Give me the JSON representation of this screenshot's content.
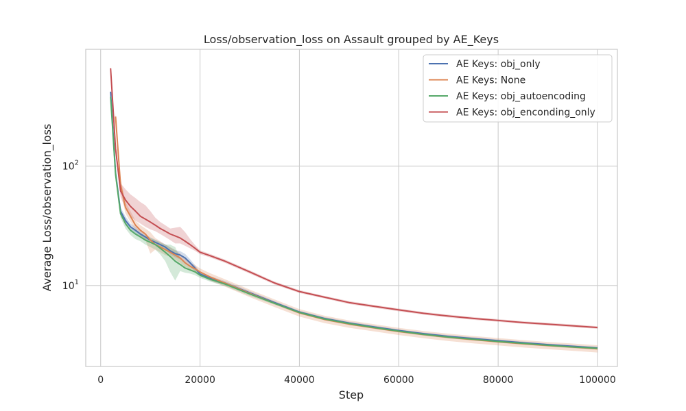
{
  "chart_data": {
    "type": "line",
    "title": "Loss/observation_loss on Assault grouped by AE_Keys",
    "xlabel": "Step",
    "ylabel": "Average Loss/observation_loss",
    "xlim": [
      -3000,
      104000
    ],
    "ylim": [
      2.1,
      950
    ],
    "yscale": "log",
    "grid": true,
    "legend_position": "top-right",
    "x_ticks": [
      0,
      20000,
      40000,
      60000,
      80000,
      100000
    ],
    "x_tick_labels": [
      "0",
      "20000",
      "40000",
      "60000",
      "80000",
      "100000"
    ],
    "y_ticks": [
      {
        "value": 10,
        "base": "10",
        "exp": "1"
      },
      {
        "value": 100,
        "base": "10",
        "exp": "2"
      }
    ],
    "series": [
      {
        "name": "AE Keys: obj_only",
        "color": "#4c72b0",
        "x": [
          2000,
          3000,
          4000,
          5000,
          6000,
          7000,
          8000,
          9000,
          10000,
          11000,
          12000,
          13000,
          14000,
          15000,
          16000,
          17000,
          18000,
          19000,
          20000,
          22000,
          25000,
          30000,
          35000,
          40000,
          45000,
          50000,
          55000,
          60000,
          65000,
          70000,
          75000,
          80000,
          85000,
          90000,
          95000,
          100000
        ],
        "y": [
          420,
          88,
          42,
          35,
          31,
          29,
          27,
          25.5,
          24,
          23,
          22,
          21,
          19.5,
          18.5,
          18,
          17,
          15.5,
          14,
          12.5,
          11.5,
          10.5,
          8.7,
          7.2,
          6.0,
          5.3,
          4.85,
          4.5,
          4.2,
          3.95,
          3.75,
          3.6,
          3.45,
          3.32,
          3.2,
          3.1,
          3.0
        ],
        "lo": [
          400,
          80,
          39,
          32,
          29,
          27,
          25.5,
          24,
          22.8,
          21.8,
          20.8,
          19.8,
          18.2,
          17.2,
          16.6,
          15.6,
          14.4,
          13.2,
          12,
          11,
          10.1,
          8.4,
          7.0,
          5.85,
          5.15,
          4.72,
          4.38,
          4.1,
          3.86,
          3.66,
          3.51,
          3.37,
          3.24,
          3.13,
          3.03,
          2.93
        ],
        "hi": [
          440,
          96,
          45,
          38,
          33,
          31,
          28.5,
          27,
          25.3,
          24.2,
          23.2,
          22.2,
          20.8,
          19.8,
          19.4,
          18.4,
          16.6,
          14.8,
          13,
          12,
          10.9,
          9.0,
          7.4,
          6.15,
          5.45,
          4.98,
          4.62,
          4.3,
          4.04,
          3.84,
          3.69,
          3.53,
          3.4,
          3.27,
          3.17,
          3.07
        ]
      },
      {
        "name": "AE Keys: None",
        "color": "#dd8452",
        "x": [
          3000,
          4000,
          5000,
          6000,
          7000,
          8000,
          9000,
          10000,
          11000,
          12000,
          13000,
          14000,
          15000,
          16000,
          17000,
          18000,
          19000,
          20000,
          22000,
          25000,
          30000,
          35000,
          40000,
          45000,
          50000,
          55000,
          60000,
          65000,
          70000,
          75000,
          80000,
          85000,
          90000,
          95000,
          100000
        ],
        "y": [
          260,
          70,
          45,
          38,
          32,
          29,
          27,
          24,
          22,
          21,
          20,
          19,
          18,
          17,
          15.5,
          14.5,
          13.8,
          13,
          11.8,
          10.5,
          8.6,
          7.1,
          5.9,
          5.2,
          4.75,
          4.42,
          4.12,
          3.88,
          3.68,
          3.52,
          3.38,
          3.25,
          3.14,
          3.05,
          2.95
        ],
        "lo": [
          230,
          62,
          40,
          34,
          29,
          26,
          24,
          18.5,
          20,
          19,
          18,
          17.5,
          16.5,
          15.5,
          14.3,
          13.5,
          12.9,
          12.2,
          11,
          9.8,
          8.0,
          6.6,
          5.5,
          4.85,
          4.43,
          4.13,
          3.85,
          3.62,
          3.43,
          3.28,
          3.15,
          3.03,
          2.93,
          2.84,
          2.75
        ],
        "hi": [
          280,
          80,
          50,
          42,
          35,
          32,
          30,
          28,
          25,
          23.5,
          22,
          21,
          19.8,
          18.6,
          16.8,
          15.6,
          14.8,
          13.9,
          12.7,
          11.3,
          9.25,
          7.65,
          6.35,
          5.6,
          5.1,
          4.75,
          4.42,
          4.16,
          3.95,
          3.78,
          3.63,
          3.49,
          3.37,
          3.27,
          3.16
        ]
      },
      {
        "name": "AE Keys: obj_autoencoding",
        "color": "#55a868",
        "x": [
          2000,
          3000,
          4000,
          5000,
          6000,
          7000,
          8000,
          9000,
          10000,
          11000,
          12000,
          13000,
          14000,
          15000,
          16000,
          17000,
          18000,
          19000,
          20000,
          22000,
          25000,
          30000,
          35000,
          40000,
          45000,
          50000,
          55000,
          60000,
          65000,
          70000,
          75000,
          80000,
          85000,
          90000,
          95000,
          100000
        ],
        "y": [
          380,
          85,
          40,
          33,
          29,
          27,
          25.5,
          24,
          23,
          22,
          20.5,
          19,
          17.5,
          16,
          15,
          14,
          13.5,
          13,
          12.2,
          11.3,
          10.3,
          8.5,
          7.1,
          5.95,
          5.25,
          4.8,
          4.45,
          4.15,
          3.9,
          3.7,
          3.55,
          3.4,
          3.28,
          3.16,
          3.06,
          2.98
        ],
        "lo": [
          360,
          78,
          37,
          30,
          26.5,
          24.5,
          23.5,
          22,
          21,
          20,
          18.2,
          16,
          13,
          11,
          13.2,
          12.8,
          12.6,
          12.2,
          11.6,
          10.8,
          9.9,
          8.2,
          6.9,
          5.8,
          5.12,
          4.68,
          4.34,
          4.05,
          3.81,
          3.61,
          3.47,
          3.32,
          3.2,
          3.09,
          2.99,
          2.91
        ],
        "hi": [
          400,
          92,
          43,
          36,
          31.5,
          29.5,
          27.5,
          26,
          25,
          24,
          22.8,
          22,
          22,
          21,
          17,
          15.3,
          14.4,
          13.8,
          12.8,
          11.8,
          10.7,
          8.8,
          7.3,
          6.1,
          5.38,
          4.92,
          4.56,
          4.25,
          3.99,
          3.79,
          3.63,
          3.48,
          3.36,
          3.23,
          3.13,
          3.05
        ]
      },
      {
        "name": "AE Keys: obj_enconding_only",
        "color": "#c44e52",
        "x": [
          2000,
          3000,
          4000,
          5000,
          6000,
          7000,
          8000,
          9000,
          10000,
          11000,
          12000,
          13000,
          14000,
          15000,
          16000,
          17000,
          18000,
          19000,
          20000,
          22000,
          25000,
          30000,
          35000,
          40000,
          45000,
          50000,
          55000,
          60000,
          65000,
          70000,
          75000,
          80000,
          85000,
          90000,
          95000,
          100000
        ],
        "y": [
          660,
          140,
          62,
          52,
          46,
          42,
          38,
          36,
          34,
          32,
          30,
          28.5,
          27,
          26,
          25,
          23.5,
          22,
          20.5,
          19,
          17.8,
          16,
          13,
          10.5,
          8.9,
          8.0,
          7.2,
          6.7,
          6.25,
          5.85,
          5.55,
          5.3,
          5.1,
          4.9,
          4.75,
          4.6,
          4.45
        ],
        "lo": [
          640,
          125,
          55,
          44,
          38,
          35,
          33,
          31,
          29.5,
          28.5,
          27,
          25.5,
          24,
          22.5,
          22.5,
          21.5,
          20.5,
          19.5,
          18.3,
          17.2,
          15.5,
          12.6,
          10.2,
          8.65,
          7.8,
          7.0,
          6.52,
          6.08,
          5.7,
          5.4,
          5.16,
          4.97,
          4.78,
          4.63,
          4.48,
          4.34
        ],
        "hi": [
          680,
          155,
          72,
          64,
          58,
          54,
          50,
          47,
          42,
          37,
          34,
          32,
          30,
          30.5,
          31,
          28,
          24.5,
          21.8,
          19.7,
          18.4,
          16.5,
          13.4,
          10.8,
          9.15,
          8.2,
          7.4,
          6.88,
          6.42,
          6.0,
          5.7,
          5.44,
          5.23,
          5.02,
          4.87,
          4.72,
          4.56
        ]
      }
    ]
  }
}
